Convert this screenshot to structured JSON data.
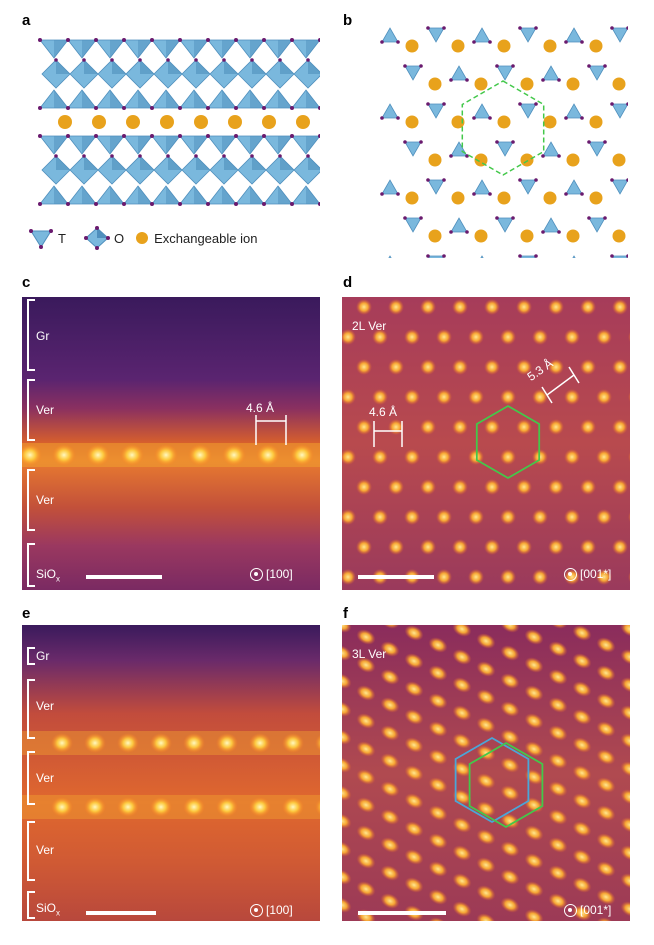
{
  "panels": {
    "a": {
      "letter": "a"
    },
    "b": {
      "letter": "b"
    },
    "c": {
      "letter": "c",
      "layers": [
        "Gr",
        "Ver",
        "Ver",
        "SiOx"
      ],
      "measure": "4.6 Å",
      "zone": "[100]"
    },
    "d": {
      "letter": "d",
      "title": "2L Ver",
      "measure1": "4.6 Å",
      "measure2": "5.3 Å",
      "zone": "[001*]"
    },
    "e": {
      "letter": "e",
      "layers": [
        "Gr",
        "Ver",
        "Ver",
        "Ver",
        "SiOx"
      ],
      "zone": "[100]"
    },
    "f": {
      "letter": "f",
      "title": "3L Ver",
      "zone": "[001*]"
    }
  },
  "legend": {
    "t_label": "T",
    "o_label": "O",
    "ion_label": "Exchangeable ion"
  },
  "colors": {
    "tetra": "#7ab8dd",
    "tetra_dark": "#4f8fbd",
    "oxygen": "#6a1a6e",
    "ion": "#e8a21c",
    "hexagon": "#43c84a",
    "hexagon_alt": "#4aa6d8",
    "bg_dark": "#3c1a5a",
    "bg_mid": "#a33a5a",
    "bright": "#ffd86a"
  }
}
